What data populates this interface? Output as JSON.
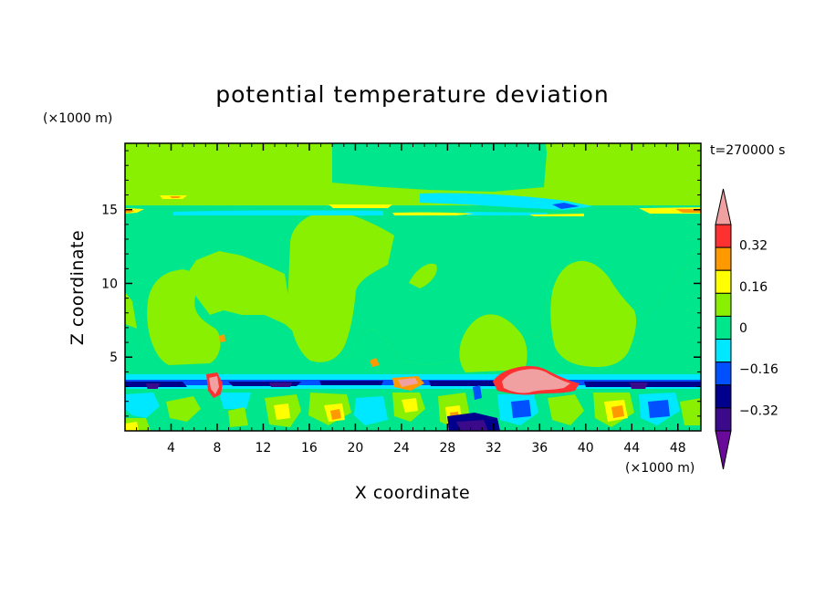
{
  "chart_data": {
    "type": "heatmap",
    "title": "potential temperature deviation",
    "xlabel": "X coordinate",
    "ylabel": "Z coordinate",
    "x_unit": "(×1000 m)",
    "y_unit": "(×1000 m)",
    "time_label": "t=270000 s",
    "xlim": [
      0,
      50
    ],
    "ylim": [
      0,
      19.5
    ],
    "x_ticks": [
      4,
      8,
      12,
      16,
      20,
      24,
      28,
      32,
      36,
      40,
      44,
      48
    ],
    "y_ticks": [
      5,
      10,
      15
    ],
    "colorbar": {
      "levels": [
        -0.4,
        -0.32,
        -0.24,
        -0.16,
        -0.08,
        0,
        0.08,
        0.16,
        0.24,
        0.32,
        0.4
      ],
      "labeled_levels": [
        0.32,
        0.16,
        0,
        -0.16,
        -0.32
      ],
      "colors": [
        "#6a0a9a",
        "#3a0a8a",
        "#00008c",
        "#0050ff",
        "#00e8ff",
        "#00e68c",
        "#88f000",
        "#ffff00",
        "#ff9900",
        "#ff3030",
        "#f0a0a0"
      ],
      "extend": "both"
    }
  }
}
